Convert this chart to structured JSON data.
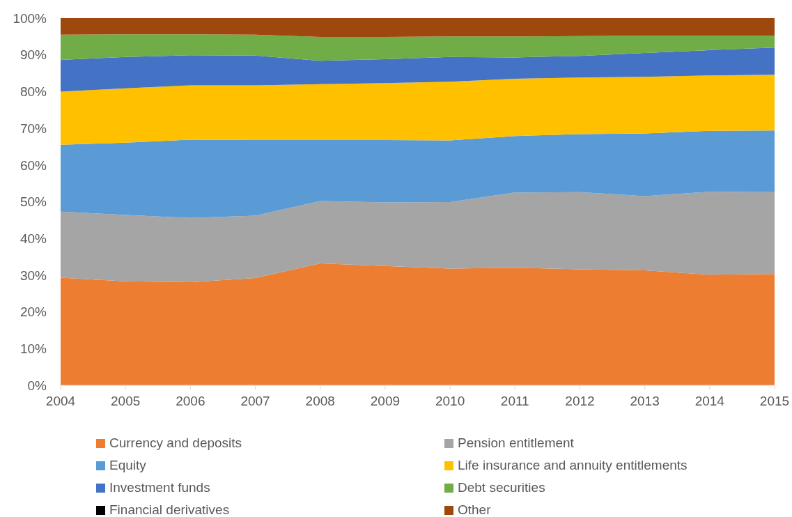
{
  "chart_data": {
    "type": "area",
    "stacked": true,
    "legend": "bottom",
    "categories": [
      "2004",
      "2005",
      "2006",
      "2007",
      "2008",
      "2009",
      "2010",
      "2011",
      "2012",
      "2013",
      "2014",
      "2015"
    ],
    "ylim": [
      0,
      100
    ],
    "yticks": [
      {
        "value": 0,
        "label": "0%"
      },
      {
        "value": 10,
        "label": "10%"
      },
      {
        "value": 20,
        "label": "20%"
      },
      {
        "value": 30,
        "label": "30%"
      },
      {
        "value": 40,
        "label": "40%"
      },
      {
        "value": 50,
        "label": "50%"
      },
      {
        "value": 60,
        "label": "60%"
      },
      {
        "value": 70,
        "label": "70%"
      },
      {
        "value": 80,
        "label": "80%"
      },
      {
        "value": 90,
        "label": "90%"
      },
      {
        "value": 100,
        "label": "100%"
      }
    ],
    "series": [
      {
        "name": "Currency and deposits",
        "color": "#ed7d31",
        "values": [
          29.3,
          28.3,
          28.1,
          29.2,
          33.2,
          32.5,
          31.8,
          32.0,
          31.6,
          31.3,
          30.1,
          30.3
        ]
      },
      {
        "name": "Pension entitlement",
        "color": "#a5a5a5",
        "values": [
          18.0,
          18.1,
          17.5,
          17.0,
          17.0,
          17.3,
          18.1,
          20.5,
          21.0,
          20.2,
          22.6,
          22.3
        ]
      },
      {
        "name": "Equity",
        "color": "#5b9bd5",
        "values": [
          18.2,
          19.7,
          21.3,
          20.6,
          16.6,
          17.0,
          16.8,
          15.4,
          15.8,
          17.1,
          16.6,
          16.8
        ]
      },
      {
        "name": "Life insurance and annuity entitlements",
        "color": "#ffc000",
        "values": [
          14.5,
          14.8,
          14.8,
          14.9,
          15.2,
          15.5,
          16.0,
          15.6,
          15.4,
          15.4,
          15.1,
          15.2
        ]
      },
      {
        "name": "Investment funds",
        "color": "#4472c4",
        "values": [
          8.6,
          8.5,
          8.2,
          8.1,
          6.4,
          6.5,
          6.7,
          5.8,
          5.9,
          6.5,
          6.9,
          7.4
        ]
      },
      {
        "name": "Debt securities",
        "color": "#70ad47",
        "values": [
          6.9,
          6.2,
          5.7,
          5.7,
          6.5,
          6.1,
          5.6,
          5.7,
          5.4,
          4.7,
          3.9,
          3.2
        ]
      },
      {
        "name": "Financial derivatives",
        "color": "#000000",
        "values": [
          null,
          null,
          null,
          null,
          null,
          null,
          null,
          null,
          null,
          null,
          null,
          null
        ]
      },
      {
        "name": "Other",
        "color": "#9e480e",
        "values": [
          4.5,
          4.4,
          4.4,
          4.5,
          5.1,
          5.1,
          5.0,
          5.0,
          4.9,
          4.8,
          4.8,
          4.8
        ]
      }
    ]
  }
}
